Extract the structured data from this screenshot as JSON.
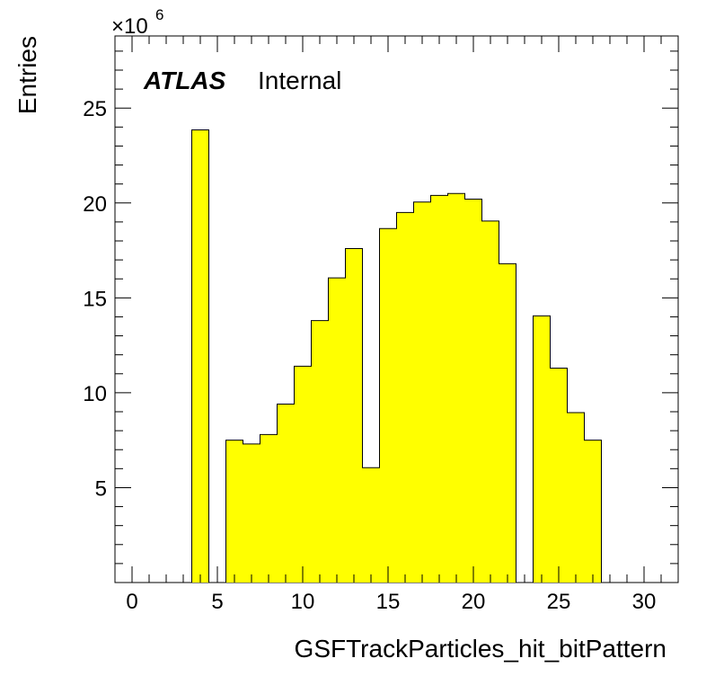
{
  "chart_data": {
    "type": "bar",
    "histogram": true,
    "xlabel": "GSFTrackParticles_hit_bitPattern",
    "ylabel": "Entries",
    "y_multiplier": "×10",
    "y_multiplier_exponent": "6",
    "label_bold": "ATLAS",
    "label_normal": "Internal",
    "xlim": [
      -1,
      32
    ],
    "ylim": [
      0,
      28.8
    ],
    "x_ticks": [
      0,
      5,
      10,
      15,
      20,
      25,
      30
    ],
    "x_tick_labels": [
      "0",
      "5",
      "10",
      "15",
      "20",
      "25",
      "30"
    ],
    "y_ticks": [
      5,
      10,
      15,
      20,
      25
    ],
    "y_tick_labels": [
      "5",
      "10",
      "15",
      "20",
      "25"
    ],
    "bin_edges": [
      -0.5,
      0.5,
      1.5,
      2.5,
      3.5,
      4.5,
      5.5,
      6.5,
      7.5,
      8.5,
      9.5,
      10.5,
      11.5,
      12.5,
      13.5,
      14.5,
      15.5,
      16.5,
      17.5,
      18.5,
      19.5,
      20.5,
      21.5,
      22.5,
      23.5,
      24.5,
      25.5,
      26.5,
      27.5,
      28.5,
      29.5,
      30.5,
      31.5
    ],
    "values": [
      0,
      0,
      0,
      0,
      23.85,
      0,
      7.5,
      7.3,
      7.8,
      9.4,
      11.4,
      13.8,
      16.05,
      17.6,
      6.05,
      18.65,
      19.5,
      20.05,
      20.4,
      20.5,
      20.2,
      19.05,
      16.8,
      0,
      14.05,
      11.3,
      8.95,
      7.5,
      0,
      0,
      0,
      0
    ],
    "fill_color": "#ffff00",
    "line_color": "#000000",
    "grid": false,
    "legend": "none"
  }
}
